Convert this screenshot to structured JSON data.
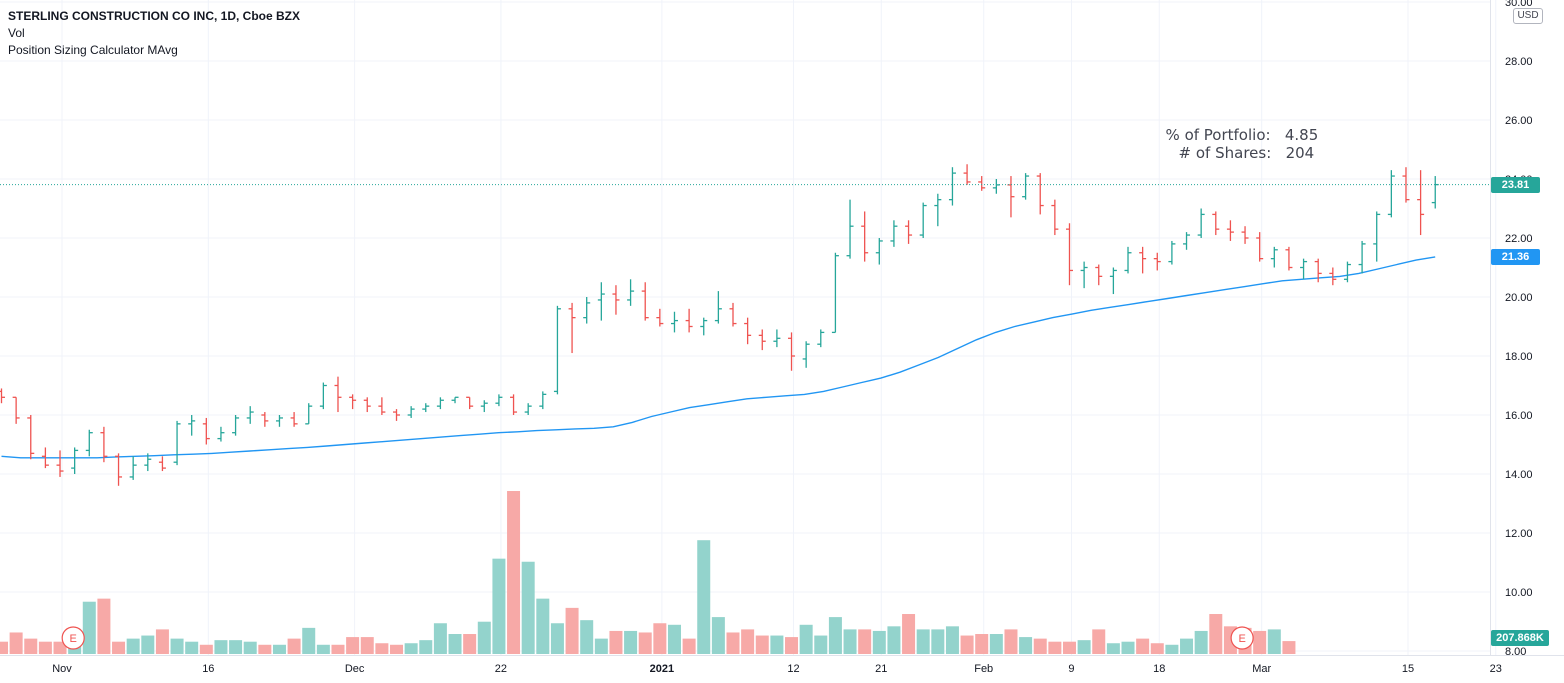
{
  "legend": {
    "title": "STERLING CONSTRUCTION CO INC, 1D, Cboe BZX",
    "line2": "Vol",
    "line3": "Position Sizing Calculator MAvg"
  },
  "currency": "USD",
  "position_info": {
    "portfolio_label": "% of Portfolio:",
    "portfolio_value": "4.85",
    "shares_label": "# of Shares:",
    "shares_value": "204"
  },
  "badges": {
    "last_price": "23.81",
    "ma_value": "21.36",
    "volume": "207.868K"
  },
  "colors": {
    "up": "#26a69a",
    "down": "#ef5350",
    "vol_up": "#93d3cc",
    "vol_down": "#f7a9a7",
    "ma_line": "#2196f3",
    "grid": "#f0f3fa",
    "axis_text": "#131722"
  },
  "earnings_markers": [
    "E",
    "E"
  ],
  "chart_data": {
    "type": "ohlc",
    "y_axis": {
      "ticks": [
        "30.00",
        "28.00",
        "26.00",
        "24.00",
        "22.00",
        "20.00",
        "18.00",
        "16.00",
        "14.00",
        "12.00",
        "10.00",
        "8.00"
      ],
      "ylim": [
        8,
        30
      ]
    },
    "x_axis": {
      "ticks": [
        {
          "label": "Nov",
          "i": 4,
          "bold": false
        },
        {
          "label": "16",
          "i": 14,
          "bold": false
        },
        {
          "label": "Dec",
          "i": 24,
          "bold": false
        },
        {
          "label": "22",
          "i": 34,
          "bold": false
        },
        {
          "label": "2021",
          "i": 45,
          "bold": true
        },
        {
          "label": "12",
          "i": 54,
          "bold": false
        },
        {
          "label": "21",
          "i": 60,
          "bold": false
        },
        {
          "label": "Feb",
          "i": 67,
          "bold": false
        },
        {
          "label": "9",
          "i": 73,
          "bold": false
        },
        {
          "label": "18",
          "i": 79,
          "bold": false
        },
        {
          "label": "Mar",
          "i": 86,
          "bold": false
        },
        {
          "label": "15",
          "i": 96,
          "bold": false
        },
        {
          "label": "23",
          "i": 102,
          "bold": false
        }
      ]
    },
    "ohlc": [
      [
        16.8,
        16.9,
        16.4,
        16.6
      ],
      [
        16.6,
        16.6,
        15.7,
        15.9
      ],
      [
        15.9,
        16.0,
        14.5,
        14.7
      ],
      [
        14.6,
        14.9,
        14.2,
        14.3
      ],
      [
        14.3,
        14.8,
        13.9,
        14.1
      ],
      [
        14.2,
        14.9,
        14.0,
        14.8
      ],
      [
        14.8,
        15.5,
        14.6,
        15.4
      ],
      [
        15.4,
        15.6,
        14.4,
        14.6
      ],
      [
        14.6,
        14.7,
        13.6,
        13.9
      ],
      [
        13.9,
        14.6,
        13.8,
        14.3
      ],
      [
        14.3,
        14.7,
        14.1,
        14.5
      ],
      [
        14.4,
        14.6,
        14.1,
        14.2
      ],
      [
        14.4,
        15.8,
        14.3,
        15.7
      ],
      [
        15.7,
        16.0,
        15.3,
        15.8
      ],
      [
        15.7,
        15.9,
        15.0,
        15.2
      ],
      [
        15.2,
        15.6,
        15.1,
        15.4
      ],
      [
        15.4,
        16.0,
        15.3,
        15.9
      ],
      [
        15.9,
        16.3,
        15.7,
        16.1
      ],
      [
        16.0,
        16.1,
        15.6,
        15.8
      ],
      [
        15.8,
        16.0,
        15.6,
        15.9
      ],
      [
        15.9,
        16.1,
        15.6,
        15.7
      ],
      [
        15.7,
        16.4,
        15.7,
        16.3
      ],
      [
        16.3,
        17.1,
        16.2,
        17.0
      ],
      [
        17.0,
        17.3,
        16.1,
        16.6
      ],
      [
        16.6,
        16.7,
        16.2,
        16.5
      ],
      [
        16.5,
        16.6,
        16.1,
        16.3
      ],
      [
        16.3,
        16.6,
        16.0,
        16.1
      ],
      [
        16.1,
        16.2,
        15.8,
        16.0
      ],
      [
        16.0,
        16.3,
        15.9,
        16.2
      ],
      [
        16.2,
        16.4,
        16.1,
        16.3
      ],
      [
        16.3,
        16.6,
        16.2,
        16.5
      ],
      [
        16.5,
        16.6,
        16.4,
        16.6
      ],
      [
        16.6,
        16.6,
        16.2,
        16.3
      ],
      [
        16.3,
        16.5,
        16.1,
        16.4
      ],
      [
        16.4,
        16.7,
        16.3,
        16.6
      ],
      [
        16.6,
        16.7,
        16.0,
        16.1
      ],
      [
        16.1,
        16.4,
        16.0,
        16.3
      ],
      [
        16.3,
        16.8,
        16.2,
        16.7
      ],
      [
        16.8,
        19.7,
        16.7,
        19.6
      ],
      [
        19.6,
        19.8,
        18.1,
        19.3
      ],
      [
        19.3,
        20.0,
        19.1,
        19.8
      ],
      [
        19.9,
        20.5,
        19.2,
        20.1
      ],
      [
        20.1,
        20.4,
        19.4,
        19.9
      ],
      [
        19.9,
        20.6,
        19.7,
        20.2
      ],
      [
        20.2,
        20.5,
        19.2,
        19.3
      ],
      [
        19.3,
        19.6,
        19.0,
        19.1
      ],
      [
        19.1,
        19.5,
        18.8,
        19.2
      ],
      [
        19.2,
        19.6,
        18.8,
        19.0
      ],
      [
        19.0,
        19.3,
        18.7,
        19.2
      ],
      [
        19.2,
        20.2,
        19.1,
        19.6
      ],
      [
        19.6,
        19.8,
        19.0,
        19.1
      ],
      [
        19.1,
        19.3,
        18.4,
        18.7
      ],
      [
        18.7,
        18.9,
        18.2,
        18.5
      ],
      [
        18.5,
        18.9,
        18.3,
        18.6
      ],
      [
        18.6,
        18.8,
        17.5,
        18.0
      ],
      [
        17.9,
        18.5,
        17.6,
        18.4
      ],
      [
        18.4,
        18.9,
        18.3,
        18.8
      ],
      [
        18.8,
        21.5,
        18.8,
        21.4
      ],
      [
        21.4,
        23.3,
        21.3,
        22.4
      ],
      [
        22.4,
        22.9,
        21.2,
        21.5
      ],
      [
        21.5,
        22.0,
        21.1,
        21.9
      ],
      [
        21.9,
        22.6,
        21.7,
        22.4
      ],
      [
        22.4,
        22.6,
        21.8,
        22.1
      ],
      [
        22.1,
        23.2,
        22.0,
        23.1
      ],
      [
        23.1,
        23.5,
        22.4,
        23.3
      ],
      [
        23.3,
        24.4,
        23.1,
        24.2
      ],
      [
        24.2,
        24.5,
        23.8,
        23.9
      ],
      [
        23.9,
        24.1,
        23.6,
        23.7
      ],
      [
        23.7,
        24.0,
        23.5,
        23.8
      ],
      [
        23.8,
        24.1,
        22.7,
        23.4
      ],
      [
        23.4,
        24.2,
        23.3,
        24.1
      ],
      [
        24.1,
        24.2,
        22.8,
        23.1
      ],
      [
        23.1,
        23.3,
        22.1,
        22.3
      ],
      [
        22.3,
        22.5,
        20.4,
        20.9
      ],
      [
        20.9,
        21.2,
        20.3,
        21.0
      ],
      [
        21.0,
        21.1,
        20.4,
        20.7
      ],
      [
        20.7,
        21.0,
        20.1,
        20.9
      ],
      [
        20.9,
        21.7,
        20.8,
        21.5
      ],
      [
        21.5,
        21.7,
        20.8,
        21.3
      ],
      [
        21.3,
        21.5,
        20.9,
        21.2
      ],
      [
        21.2,
        21.9,
        21.1,
        21.8
      ],
      [
        21.8,
        22.2,
        21.6,
        22.1
      ],
      [
        22.1,
        23.0,
        22.0,
        22.8
      ],
      [
        22.8,
        22.9,
        22.1,
        22.3
      ],
      [
        22.3,
        22.6,
        21.9,
        22.2
      ],
      [
        22.2,
        22.4,
        21.8,
        22.0
      ],
      [
        22.0,
        22.2,
        21.2,
        21.3
      ],
      [
        21.3,
        21.7,
        21.0,
        21.6
      ],
      [
        21.6,
        21.7,
        20.9,
        21.0
      ],
      [
        21.0,
        21.3,
        20.6,
        21.2
      ],
      [
        21.2,
        21.3,
        20.5,
        20.8
      ],
      [
        20.8,
        21.0,
        20.4,
        20.6
      ],
      [
        20.6,
        21.2,
        20.5,
        21.1
      ],
      [
        21.1,
        21.9,
        20.8,
        21.8
      ],
      [
        21.8,
        22.9,
        21.2,
        22.8
      ],
      [
        22.8,
        24.3,
        22.7,
        24.1
      ],
      [
        24.1,
        24.4,
        23.2,
        23.3
      ],
      [
        23.3,
        24.3,
        22.1,
        22.8
      ],
      [
        23.2,
        24.1,
        23.0,
        23.81
      ]
    ],
    "volume_range_max": 6000000,
    "volume": [
      400000,
      700000,
      500000,
      400000,
      400000,
      600000,
      1700000,
      1800000,
      400000,
      500000,
      600000,
      800000,
      500000,
      400000,
      300000,
      450000,
      450000,
      400000,
      300000,
      300000,
      500000,
      850000,
      300000,
      300000,
      550000,
      550000,
      350000,
      300000,
      350000,
      450000,
      1000000,
      650000,
      650000,
      1050000,
      3100000,
      5300000,
      3000000,
      1800000,
      1000000,
      1500000,
      1100000,
      500000,
      750000,
      750000,
      700000,
      1000000,
      950000,
      500000,
      3700000,
      1200000,
      700000,
      800000,
      600000,
      600000,
      550000,
      950000,
      600000,
      1200000,
      800000,
      800000,
      750000,
      900000,
      1300000,
      800000,
      800000,
      900000,
      600000,
      650000,
      650000,
      800000,
      550000,
      500000,
      400000,
      400000,
      450000,
      800000,
      350000,
      400000,
      500000,
      350000,
      300000,
      500000,
      750000,
      1300000,
      900000,
      850000,
      750000,
      800000,
      420000
    ],
    "moving_average": [
      14.6,
      14.55,
      14.55,
      14.55,
      14.55,
      14.55,
      14.58,
      14.6,
      14.62,
      14.65,
      14.67,
      14.7,
      14.74,
      14.78,
      14.82,
      14.86,
      14.9,
      14.95,
      15.0,
      15.05,
      15.1,
      15.15,
      15.2,
      15.25,
      15.3,
      15.35,
      15.4,
      15.43,
      15.47,
      15.5,
      15.53,
      15.55,
      15.6,
      15.75,
      15.95,
      16.1,
      16.25,
      16.35,
      16.45,
      16.55,
      16.6,
      16.65,
      16.7,
      16.8,
      16.95,
      17.1,
      17.25,
      17.45,
      17.7,
      17.95,
      18.25,
      18.55,
      18.8,
      19.0,
      19.15,
      19.3,
      19.42,
      19.55,
      19.65,
      19.75,
      19.85,
      19.95,
      20.05,
      20.15,
      20.25,
      20.35,
      20.45,
      20.55,
      20.6,
      20.65,
      20.7,
      20.8,
      20.95,
      21.1,
      21.25,
      21.36
    ]
  }
}
